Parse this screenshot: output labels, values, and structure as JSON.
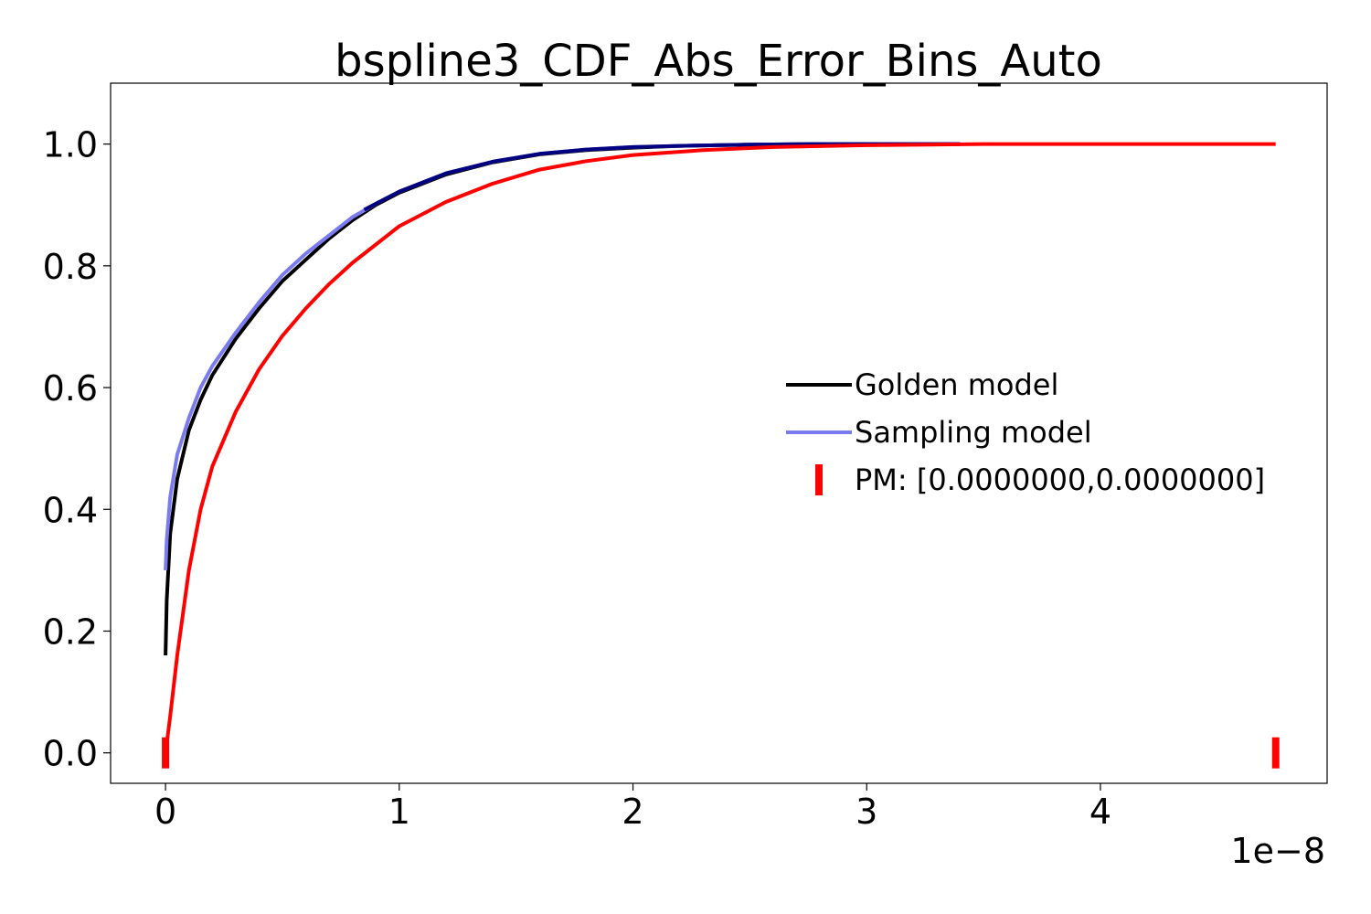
{
  "chart_data": {
    "type": "line",
    "title": "bspline3_CDF_Abs_Error_Bins_Auto",
    "xlabel": "",
    "ylabel": "",
    "x_offset_label": "1e−8",
    "xlim": [
      -0.235,
      4.97
    ],
    "ylim": [
      -0.05,
      1.1
    ],
    "x_ticks": [
      0,
      1,
      2,
      3,
      4
    ],
    "x_tick_labels": [
      "0",
      "1",
      "2",
      "3",
      "4"
    ],
    "y_ticks": [
      0.0,
      0.2,
      0.4,
      0.6,
      0.8,
      1.0
    ],
    "y_tick_labels": [
      "0.0",
      "0.2",
      "0.4",
      "0.6",
      "0.8",
      "1.0"
    ],
    "grid": false,
    "legend_position": "center-right",
    "series": [
      {
        "name": "Golden model",
        "color": "#000000",
        "x": [
          0,
          0.005,
          0.02,
          0.05,
          0.1,
          0.15,
          0.2,
          0.3,
          0.4,
          0.5,
          0.6,
          0.7,
          0.8,
          0.9,
          1.0,
          1.2,
          1.4,
          1.6,
          1.8,
          2.0,
          2.2,
          2.5,
          2.8,
          3.0,
          3.2,
          3.4
        ],
        "y": [
          0.16,
          0.25,
          0.36,
          0.45,
          0.53,
          0.58,
          0.62,
          0.68,
          0.73,
          0.775,
          0.81,
          0.845,
          0.875,
          0.9,
          0.92,
          0.95,
          0.97,
          0.983,
          0.99,
          0.994,
          0.997,
          0.999,
          1.0,
          1.0,
          1.0,
          1.0
        ]
      },
      {
        "name": "Sampling model",
        "color": "#7b7bf0",
        "x": [
          0,
          0.005,
          0.02,
          0.05,
          0.1,
          0.15,
          0.2,
          0.3,
          0.4,
          0.5,
          0.6,
          0.7,
          0.8,
          0.9,
          1.0,
          1.2,
          1.4,
          1.6,
          1.8,
          2.0,
          2.2,
          2.5,
          2.8,
          3.0,
          3.2,
          3.4
        ],
        "y": [
          0.3,
          0.35,
          0.42,
          0.49,
          0.55,
          0.6,
          0.635,
          0.69,
          0.74,
          0.785,
          0.82,
          0.85,
          0.88,
          0.902,
          0.922,
          0.952,
          0.971,
          0.984,
          0.991,
          0.995,
          0.997,
          0.999,
          1.0,
          1.0,
          1.0,
          1.0
        ]
      },
      {
        "name": "Sampling model (overlap)",
        "color": "#000080",
        "x": [
          0.85,
          0.9,
          1.0,
          1.2,
          1.4,
          1.6,
          1.8,
          2.0,
          2.2,
          2.5,
          2.8,
          3.0,
          3.2,
          3.4
        ],
        "y": [
          0.892,
          0.902,
          0.922,
          0.952,
          0.971,
          0.984,
          0.991,
          0.995,
          0.997,
          0.999,
          1.0,
          1.0,
          1.0,
          1.0
        ]
      },
      {
        "name": "PM",
        "color": "#ff0000",
        "x": [
          0,
          0.02,
          0.05,
          0.1,
          0.15,
          0.2,
          0.3,
          0.4,
          0.5,
          0.6,
          0.7,
          0.8,
          1.0,
          1.2,
          1.4,
          1.6,
          1.8,
          2.0,
          2.3,
          2.6,
          3.0,
          3.5,
          4.0,
          4.5,
          4.75
        ],
        "y": [
          0.0,
          0.06,
          0.16,
          0.3,
          0.4,
          0.47,
          0.56,
          0.63,
          0.685,
          0.73,
          0.77,
          0.805,
          0.865,
          0.905,
          0.935,
          0.958,
          0.972,
          0.982,
          0.99,
          0.995,
          0.998,
          1.0,
          1.0,
          1.0,
          1.0
        ]
      }
    ],
    "pm_markers": {
      "color": "#ff0000",
      "x": [
        0,
        4.75
      ],
      "y": [
        0,
        0
      ]
    },
    "legend": [
      {
        "label": "Golden model",
        "color": "#000000",
        "style": "line"
      },
      {
        "label": "Sampling model",
        "color": "#7b7bf0",
        "style": "line"
      },
      {
        "label": "PM: [0.0000000,0.0000000]",
        "color": "#ff0000",
        "style": "marker"
      }
    ]
  }
}
